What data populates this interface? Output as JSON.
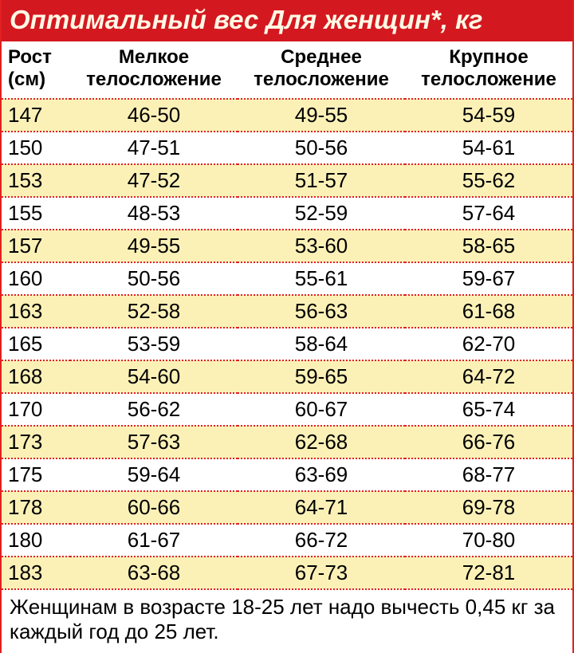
{
  "title": "Оптимальный вес Для женщин*, кг",
  "columns": [
    "Рост (см)",
    "Мелкое телосложение",
    "Среднее телосложение",
    "Крупное телосложение"
  ],
  "col_widths": [
    "86px",
    "210px",
    "210px",
    "210px"
  ],
  "rows": [
    [
      "147",
      "46-50",
      "49-55",
      "54-59"
    ],
    [
      "150",
      "47-51",
      "50-56",
      "54-61"
    ],
    [
      "153",
      "47-52",
      "51-57",
      "55-62"
    ],
    [
      "155",
      "48-53",
      "52-59",
      "57-64"
    ],
    [
      "157",
      "49-55",
      "53-60",
      "58-65"
    ],
    [
      "160",
      "50-56",
      "55-61",
      "59-67"
    ],
    [
      "163",
      "52-58",
      "56-63",
      "61-68"
    ],
    [
      "165",
      "53-59",
      "58-64",
      "62-70"
    ],
    [
      "168",
      "54-60",
      "59-65",
      "64-72"
    ],
    [
      "170",
      "56-62",
      "60-67",
      "65-74"
    ],
    [
      "173",
      "57-63",
      "62-68",
      "66-76"
    ],
    [
      "175",
      "59-64",
      "63-69",
      "68-77"
    ],
    [
      "178",
      "60-66",
      "64-71",
      "69-78"
    ],
    [
      "180",
      "61-67",
      "66-72",
      "70-80"
    ],
    [
      "183",
      "63-68",
      "67-73",
      "72-81"
    ]
  ],
  "row_odd_bg": "#fbf1b7",
  "row_even_bg": "#ffffff",
  "title_bg": "#d41820",
  "title_color": "#fff8e5",
  "border_color": "#e02020",
  "footnote": "Женщинам в возрасте 18-25 лет надо вычесть 0,45 кг за каждый год до 25 лет."
}
